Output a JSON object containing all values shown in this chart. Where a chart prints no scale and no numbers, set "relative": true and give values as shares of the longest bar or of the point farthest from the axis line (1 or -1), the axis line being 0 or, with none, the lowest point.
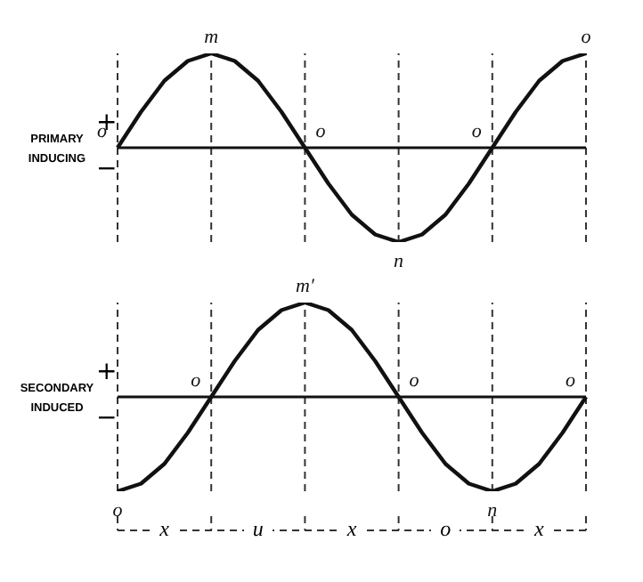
{
  "chart_data": [
    {
      "type": "line",
      "ylabel": "PRIMARY INDUCING",
      "relative": true,
      "categories": [
        null,
        null,
        null,
        null,
        null,
        null,
        null,
        null,
        null,
        null,
        null,
        null,
        null,
        null,
        null,
        null,
        null,
        null,
        null,
        null,
        null
      ],
      "series": [
        {
          "color": "#111111",
          "values": [
            0,
            0.38,
            0.71,
            0.92,
            1,
            0.92,
            0.71,
            0.38,
            0,
            -0.38,
            -0.71,
            -0.92,
            -1,
            -0.92,
            -0.71,
            -0.38,
            0,
            0.38,
            0.71,
            0.92,
            1
          ]
        }
      ],
      "grid": "x",
      "marker": "none",
      "line_style": "solid",
      "annotations": [
        "+",
        "−",
        "o",
        "m",
        "o",
        "n",
        "o",
        "o"
      ]
    },
    {
      "type": "line",
      "ylabel": "SECONDARY INDUCED",
      "relative": true,
      "categories": [
        null,
        null,
        null,
        null,
        null,
        null,
        null,
        null,
        null,
        null,
        null,
        null,
        null,
        null,
        null,
        null,
        null,
        null,
        null,
        null,
        null
      ],
      "series": [
        {
          "color": "#111111",
          "values": [
            -1,
            -0.92,
            -0.71,
            -0.38,
            0,
            0.38,
            0.71,
            0.92,
            1,
            0.92,
            0.71,
            0.38,
            0,
            -0.38,
            -0.71,
            -0.92,
            -1,
            -0.92,
            -0.71,
            -0.38,
            0
          ]
        }
      ],
      "grid": "x",
      "marker": "none",
      "line_style": "solid",
      "annotations": [
        "+",
        "−",
        "o",
        "o",
        "m′",
        "o",
        "n",
        "o",
        "x",
        "u",
        "x",
        "o",
        "x"
      ]
    }
  ]
}
